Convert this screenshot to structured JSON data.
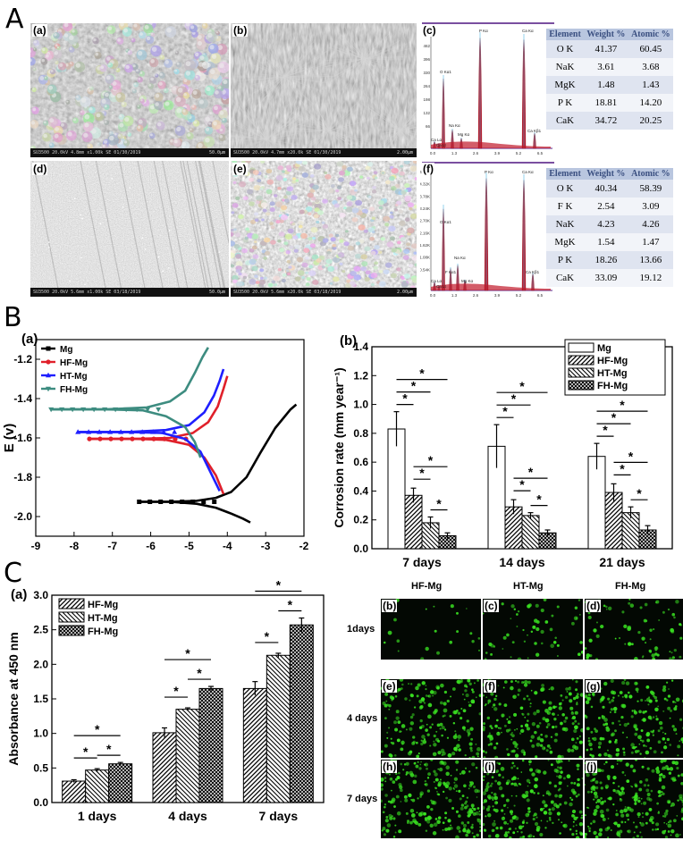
{
  "section_letters": [
    "A",
    "B",
    "C"
  ],
  "sectionA": {
    "panel_labels": [
      "(a)",
      "(b)",
      "(c)",
      "(d)",
      "(e)",
      "(f)"
    ],
    "sem_footers": [
      {
        "info": "SU3500 20.0kV 4.8mm x1.00k SE 01/30/2019",
        "scale": "50.0μm"
      },
      {
        "info": "SU3500 20.0kV 4.7mm x20.0k SE 01/30/2019",
        "scale": "2.00μm"
      },
      {
        "info": "SU3500 20.0kV 5.6mm x1.00k SE 03/18/2019",
        "scale": "50.0μm"
      },
      {
        "info": "SU3500 20.0kV 5.6mm x20.0k SE 03/18/2019",
        "scale": "2.00μm"
      }
    ],
    "eds_c": {
      "yticks": [
        "528",
        "462",
        "396",
        "330",
        "264",
        "198",
        "132",
        "66"
      ],
      "xticks": [
        "0.0",
        "1.3",
        "2.6",
        "3.9",
        "5.2",
        "6.5"
      ],
      "peak_labels": [
        "O Kα1",
        "Na Kα",
        "Mg Kα",
        "P Kα",
        "Ca Kα",
        "Ca Kβ1",
        "Ca Lα",
        "Ca Lt"
      ],
      "headers": [
        "Element",
        "Weight %",
        "Atomic %"
      ],
      "rows": [
        [
          "O K",
          "41.37",
          "60.45"
        ],
        [
          "NaK",
          "3.61",
          "3.68"
        ],
        [
          "MgK",
          "1.48",
          "1.43"
        ],
        [
          "P K",
          "18.81",
          "14.20"
        ],
        [
          "CaK",
          "34.72",
          "20.25"
        ]
      ]
    },
    "eds_f": {
      "yticks": [
        "4.86K",
        "4.32K",
        "3.78K",
        "3.24K",
        "2.70K",
        "2.16K",
        "1.62K",
        "1.08K",
        "0.54K"
      ],
      "xticks": [
        "0.0",
        "1.3",
        "2.6",
        "3.9",
        "5.2",
        "6.5"
      ],
      "peak_labels": [
        "O Kα1",
        "F Kα1",
        "Na Kα",
        "Mg Kα",
        "P Kα",
        "Ca Kα",
        "Ca Kβ1",
        "Ca Lα",
        "Ca Lt"
      ],
      "headers": [
        "Element",
        "Weight %",
        "Atomic %"
      ],
      "rows": [
        [
          "O K",
          "40.34",
          "58.39"
        ],
        [
          "F K",
          "2.54",
          "3.09"
        ],
        [
          "NaK",
          "4.23",
          "4.26"
        ],
        [
          "MgK",
          "1.54",
          "1.47"
        ],
        [
          "P K",
          "18.26",
          "13.66"
        ],
        [
          "CaK",
          "33.09",
          "19.12"
        ]
      ]
    }
  },
  "sectionB": {
    "panel_labels": [
      "(a)",
      "(b)"
    ]
  },
  "sectionC": {
    "panel_labels": [
      "(a)",
      "(b)",
      "(c)",
      "(d)",
      "(e)",
      "(f)",
      "(g)",
      "(h)",
      "(i)",
      "(j)"
    ],
    "fluo_columns": [
      "HF-Mg",
      "HT-Mg",
      "FH-Mg"
    ],
    "fluo_rows": [
      "1days",
      "4 days",
      "7 days"
    ],
    "fluo_density": [
      [
        0.08,
        0.22,
        0.3
      ],
      [
        0.75,
        0.8,
        0.8
      ],
      [
        0.9,
        0.95,
        0.95
      ]
    ],
    "colors": {
      "green": "#39e021",
      "teal": "#3d8c80",
      "blue": "#1f1fff",
      "red": "#e0202a"
    }
  },
  "chart_data": [
    {
      "type": "line",
      "panel": "B(a)",
      "title": "",
      "xlabel": "",
      "ylabel": "E (v)",
      "xlim": [
        -9,
        -2
      ],
      "ylim": [
        -2.1,
        -1.1
      ],
      "xticks": [
        -9,
        -8,
        -7,
        -6,
        -5,
        -4,
        -3,
        -2
      ],
      "yticks": [
        -2.0,
        -1.8,
        -1.6,
        -1.4,
        -1.2
      ],
      "legend": "top-left",
      "series": [
        {
          "name": "Mg",
          "color": "#000000",
          "marker": "square",
          "cathodic": [
            [
              -6.3,
              -1.925
            ],
            [
              -5.5,
              -1.925
            ],
            [
              -4.8,
              -1.935
            ],
            [
              -4.3,
              -1.955
            ],
            [
              -3.9,
              -1.985
            ],
            [
              -3.6,
              -2.01
            ],
            [
              -3.4,
              -2.03
            ]
          ],
          "anodic": [
            [
              -6.3,
              -1.925
            ],
            [
              -5.5,
              -1.925
            ],
            [
              -4.8,
              -1.92
            ],
            [
              -4.3,
              -1.905
            ],
            [
              -3.9,
              -1.875
            ],
            [
              -3.5,
              -1.8
            ],
            [
              -3.15,
              -1.68
            ],
            [
              -2.75,
              -1.55
            ],
            [
              -2.35,
              -1.455
            ],
            [
              -2.2,
              -1.43
            ]
          ]
        },
        {
          "name": "HF-Mg",
          "color": "#e0202a",
          "marker": "circle",
          "cathodic": [
            [
              -7.6,
              -1.605
            ],
            [
              -6.4,
              -1.605
            ],
            [
              -5.6,
              -1.61
            ],
            [
              -5.0,
              -1.635
            ],
            [
              -4.6,
              -1.7
            ],
            [
              -4.3,
              -1.79
            ],
            [
              -4.1,
              -1.885
            ]
          ],
          "anodic": [
            [
              -7.6,
              -1.605
            ],
            [
              -6.4,
              -1.605
            ],
            [
              -5.5,
              -1.6
            ],
            [
              -4.9,
              -1.575
            ],
            [
              -4.5,
              -1.52
            ],
            [
              -4.25,
              -1.44
            ],
            [
              -4.1,
              -1.35
            ],
            [
              -4.0,
              -1.285
            ]
          ]
        },
        {
          "name": "HT-Mg",
          "color": "#1f1fff",
          "marker": "triangle-up",
          "cathodic": [
            [
              -7.9,
              -1.57
            ],
            [
              -6.6,
              -1.57
            ],
            [
              -5.7,
              -1.575
            ],
            [
              -5.1,
              -1.605
            ],
            [
              -4.7,
              -1.67
            ],
            [
              -4.45,
              -1.77
            ],
            [
              -4.2,
              -1.87
            ]
          ],
          "anodic": [
            [
              -7.9,
              -1.57
            ],
            [
              -6.6,
              -1.57
            ],
            [
              -5.6,
              -1.56
            ],
            [
              -5.0,
              -1.535
            ],
            [
              -4.6,
              -1.47
            ],
            [
              -4.35,
              -1.385
            ],
            [
              -4.2,
              -1.31
            ],
            [
              -4.1,
              -1.25
            ]
          ]
        },
        {
          "name": "FH-Mg",
          "color": "#3d8c80",
          "marker": "triangle-down",
          "cathodic": [
            [
              -8.6,
              -1.455
            ],
            [
              -7.2,
              -1.455
            ],
            [
              -6.2,
              -1.46
            ],
            [
              -5.6,
              -1.49
            ],
            [
              -5.1,
              -1.545
            ],
            [
              -4.85,
              -1.62
            ],
            [
              -4.7,
              -1.7
            ]
          ],
          "anodic": [
            [
              -8.6,
              -1.455
            ],
            [
              -7.2,
              -1.455
            ],
            [
              -6.1,
              -1.445
            ],
            [
              -5.5,
              -1.415
            ],
            [
              -5.1,
              -1.36
            ],
            [
              -4.85,
              -1.27
            ],
            [
              -4.65,
              -1.19
            ],
            [
              -4.5,
              -1.14
            ]
          ]
        }
      ]
    },
    {
      "type": "bar",
      "panel": "B(b)",
      "title": "",
      "xlabel": "",
      "ylabel": "Corrosion rate (mm year⁻¹)",
      "categories": [
        "7 days",
        "14 days",
        "21 days"
      ],
      "ylim": [
        0,
        1.4
      ],
      "yticks": [
        0.0,
        0.2,
        0.4,
        0.6,
        0.8,
        1.0,
        1.2,
        1.4
      ],
      "legend": "top-right",
      "series": [
        {
          "name": "Mg",
          "pattern": "white",
          "values": [
            0.83,
            0.71,
            0.64
          ],
          "errors": [
            0.12,
            0.15,
            0.09
          ]
        },
        {
          "name": "HF-Mg",
          "pattern": "hatch-forward",
          "values": [
            0.37,
            0.29,
            0.39
          ],
          "errors": [
            0.05,
            0.05,
            0.06
          ]
        },
        {
          "name": "HT-Mg",
          "pattern": "hatch-back",
          "values": [
            0.18,
            0.23,
            0.25
          ],
          "errors": [
            0.04,
            0.02,
            0.04
          ]
        },
        {
          "name": "FH-Mg",
          "pattern": "crosshatch",
          "values": [
            0.09,
            0.11,
            0.13
          ],
          "errors": [
            0.02,
            0.02,
            0.03
          ]
        }
      ],
      "significance_mark": "*"
    },
    {
      "type": "bar",
      "panel": "C(a)",
      "title": "",
      "xlabel": "",
      "ylabel": "Absorbance at 450 nm",
      "categories": [
        "1 days",
        "4 days",
        "7 days"
      ],
      "ylim": [
        0,
        3.0
      ],
      "yticks": [
        0.0,
        0.5,
        1.0,
        1.5,
        2.0,
        2.5,
        3.0
      ],
      "legend": "top-left",
      "series": [
        {
          "name": "HF-Mg",
          "pattern": "hatch-forward",
          "values": [
            0.31,
            1.01,
            1.65
          ],
          "errors": [
            0.02,
            0.07,
            0.1
          ]
        },
        {
          "name": "HT-Mg",
          "pattern": "hatch-back",
          "values": [
            0.47,
            1.35,
            2.13
          ],
          "errors": [
            0.02,
            0.02,
            0.03
          ]
        },
        {
          "name": "FH-Mg",
          "pattern": "crosshatch",
          "values": [
            0.56,
            1.65,
            2.57
          ],
          "errors": [
            0.02,
            0.03,
            0.1
          ]
        }
      ],
      "significance_mark": "*"
    }
  ]
}
